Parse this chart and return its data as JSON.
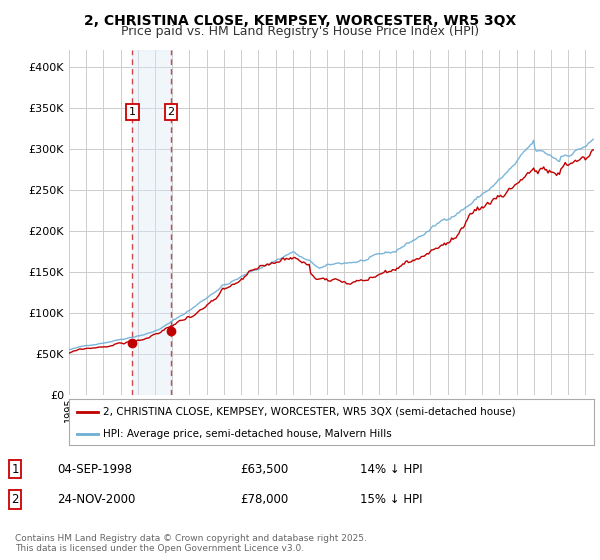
{
  "title": "2, CHRISTINA CLOSE, KEMPSEY, WORCESTER, WR5 3QX",
  "subtitle": "Price paid vs. HM Land Registry's House Price Index (HPI)",
  "title_fontsize": 10,
  "subtitle_fontsize": 9,
  "ylabel_values": [
    0,
    50000,
    100000,
    150000,
    200000,
    250000,
    300000,
    350000,
    400000
  ],
  "ylim": [
    0,
    420000
  ],
  "hpi_color": "#6baed6",
  "price_color": "#c00000",
  "purchase1_year": 1998.67,
  "purchase2_year": 2000.9,
  "purchase1_value": 63500,
  "purchase2_value": 78000,
  "legend_property": "2, CHRISTINA CLOSE, KEMPSEY, WORCESTER, WR5 3QX (semi-detached house)",
  "legend_hpi": "HPI: Average price, semi-detached house, Malvern Hills",
  "footer": "Contains HM Land Registry data © Crown copyright and database right 2025.\nThis data is licensed under the Open Government Licence v3.0.",
  "bg_color": "#ffffff",
  "grid_color": "#cccccc",
  "shade_color": "#dce9f7",
  "xstart": 1995,
  "xend": 2025.5
}
